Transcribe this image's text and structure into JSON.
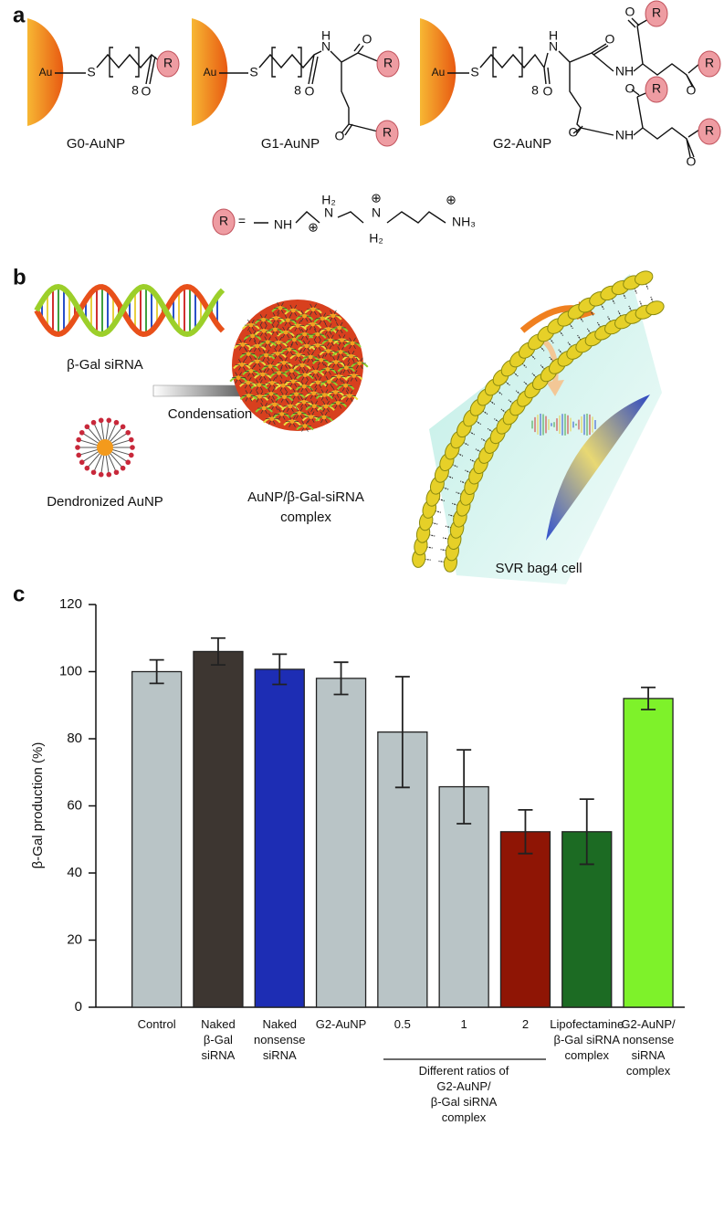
{
  "panel_a": {
    "label": "a",
    "structures": [
      {
        "name": "G0-AuNP",
        "atoms": [
          "Au",
          "S",
          "8",
          "O",
          "R"
        ]
      },
      {
        "name": "G1-AuNP",
        "atoms": [
          "Au",
          "S",
          "8",
          "O",
          "H",
          "N",
          "O",
          "R",
          "O",
          "R"
        ]
      },
      {
        "name": "G2-AuNP",
        "atoms": [
          "Au",
          "S",
          "8",
          "O",
          "H",
          "N",
          "O",
          "NH",
          "O",
          "R",
          "O",
          "R",
          "O",
          "NH",
          "O",
          "R",
          "R",
          "O"
        ]
      }
    ],
    "r_definition": [
      "R",
      "=",
      "NH",
      "H₂",
      "N",
      "⊕",
      "⊕",
      "N",
      "H₂",
      "⊕",
      "NH₃"
    ]
  },
  "panel_b": {
    "label": "b",
    "sirna": "β-Gal siRNA",
    "arrow": "Condensation",
    "aunp": "Dendronized AuNP",
    "complex": [
      "AuNP/β-Gal-siRNA",
      "complex"
    ],
    "cell": "SVR bag4 cell"
  },
  "panel_c": {
    "label": "c"
  },
  "chart_data": {
    "type": "bar",
    "ylabel": "β-Gal production (%)",
    "categories": [
      "Control",
      "Naked\nβ-Gal\nsiRNA",
      "Naked\nnonsense\nsiRNA",
      "G2-AuNP",
      "0.5",
      "1",
      "2",
      "Lipofectamine\nβ-Gal siRNA\ncomplex",
      "G2-AuNP/\nnonsense\nsiRNA\ncomplex"
    ],
    "values": [
      100,
      106,
      100.7,
      98,
      82,
      65.7,
      52.3,
      52.3,
      92
    ],
    "errors": [
      3.5,
      4,
      4.5,
      4.8,
      16.5,
      11,
      6.5,
      9.7,
      3.3
    ],
    "colors": [
      "#b9c4c6",
      "#3d3631",
      "#1d2db4",
      "#b9c4c6",
      "#b9c4c6",
      "#b9c4c6",
      "#8f1505",
      "#1c6b23",
      "#7ef22a"
    ],
    "annotation": "Different ratios of\nG2-AuNP/\nβ-Gal siRNA\ncomplex",
    "ylim": [
      0,
      120
    ],
    "yticks": [
      0,
      20,
      40,
      60,
      80,
      100,
      120
    ]
  }
}
